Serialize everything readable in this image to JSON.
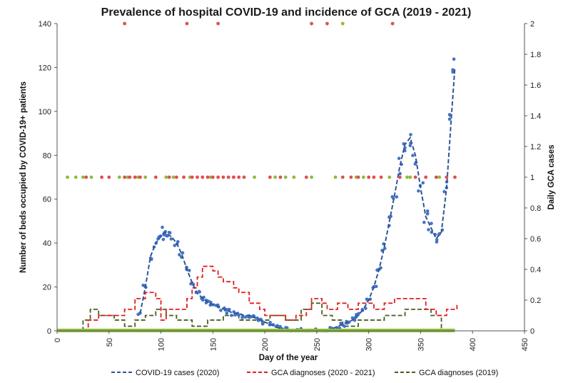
{
  "chart_data": {
    "type": "scatter",
    "title": "Prevalence of hospital COVID-19 and incidence of GCA (2019 - 2021)",
    "xlabel": "Day of the year",
    "ylabel": "Number of beds occupied by COVID-19+ patients",
    "y2label": "Daily GCA cases",
    "xlim": [
      0,
      450
    ],
    "ylim": [
      0,
      140
    ],
    "y2lim": [
      0,
      2
    ],
    "x_ticks": [
      "0",
      "50",
      "100",
      "150",
      "200",
      "250",
      "300",
      "350",
      "400",
      "450"
    ],
    "y_ticks": [
      "0",
      "20",
      "40",
      "60",
      "80",
      "100",
      "120",
      "140"
    ],
    "y2_ticks": [
      "0",
      "0.2",
      "0.4",
      "0.6",
      "0.8",
      "1",
      "1.2",
      "1.4",
      "1.6",
      "1.8",
      "2"
    ],
    "grid": false,
    "legend_position": "bottom",
    "colors": {
      "covid": "#4472c4",
      "covid_trend": "#2f5597",
      "gca_2020": "#e05050",
      "gca_2020_trend": "#e02020",
      "gca_2019": "#8fbc3c",
      "gca_2019_trend": "#4a5e20"
    },
    "series": [
      {
        "name": "COVID-19 cases (2020)",
        "axis": "left",
        "style": "dashed-trend",
        "x": [
          80,
          85,
          90,
          95,
          100,
          103,
          106,
          110,
          115,
          120,
          125,
          130,
          135,
          140,
          145,
          150,
          155,
          160,
          165,
          170,
          175,
          180,
          185,
          190,
          195,
          200,
          205,
          210,
          215,
          220,
          225,
          230,
          235,
          240,
          245,
          250,
          255,
          260,
          265,
          270,
          275,
          280,
          285,
          290,
          295,
          300,
          305,
          310,
          315,
          320,
          325,
          330,
          335,
          340,
          345,
          350,
          355,
          360,
          365,
          370,
          375,
          380,
          383
        ],
        "y": [
          8,
          20,
          34,
          40,
          43,
          45,
          44,
          43,
          40,
          35,
          28,
          22,
          17,
          15,
          13,
          12,
          11,
          10,
          9,
          8,
          8,
          7,
          7,
          6,
          5,
          4,
          3,
          2,
          1,
          0.5,
          0,
          0,
          0,
          0,
          0,
          0,
          0,
          0,
          1,
          2,
          3,
          4,
          5,
          7,
          10,
          14,
          20,
          28,
          38,
          50,
          62,
          75,
          85,
          88,
          80,
          65,
          52,
          47,
          42,
          45,
          65,
          100,
          120
        ]
      },
      {
        "name": "GCA diagnoses (2020 - 2021)",
        "axis": "right",
        "style": "dashed-step",
        "x": [
          27,
          30,
          40,
          55,
          65,
          75,
          85,
          95,
          100,
          105,
          115,
          125,
          130,
          135,
          140,
          145,
          150,
          155,
          160,
          165,
          170,
          175,
          180,
          185,
          190,
          195,
          200,
          210,
          220,
          230,
          240,
          245,
          250,
          255,
          260,
          270,
          280,
          290,
          300,
          305,
          315,
          325,
          335,
          345,
          355,
          365,
          375,
          385
        ],
        "y": [
          0,
          0.07,
          0.1,
          0.1,
          0.14,
          0.21,
          0.25,
          0.21,
          0.07,
          0.14,
          0.14,
          0.21,
          0.28,
          0.35,
          0.42,
          0.42,
          0.39,
          0.35,
          0.32,
          0.32,
          0.28,
          0.25,
          0.25,
          0.18,
          0.18,
          0.14,
          0.1,
          0.1,
          0.07,
          0.1,
          0.14,
          0.21,
          0.21,
          0.18,
          0.14,
          0.18,
          0.14,
          0.18,
          0.18,
          0.14,
          0.18,
          0.21,
          0.21,
          0.21,
          0.14,
          0.1,
          0.14,
          0.18
        ]
      },
      {
        "name": "GCA diagnoses (2019)",
        "axis": "right",
        "style": "dashed-step",
        "x": [
          0,
          25,
          32,
          40,
          55,
          65,
          75,
          85,
          95,
          105,
          115,
          130,
          145,
          160,
          175,
          190,
          205,
          220,
          235,
          245,
          255,
          265,
          275,
          290,
          305,
          315,
          325,
          335,
          350,
          360,
          370,
          383
        ],
        "y": [
          0,
          0.07,
          0.14,
          0.1,
          0.07,
          0.03,
          0.07,
          0.1,
          0.14,
          0.1,
          0.07,
          0.03,
          0.07,
          0.1,
          0.07,
          0.07,
          0.1,
          0.07,
          0.14,
          0.18,
          0.1,
          0.07,
          0.03,
          0.07,
          0.07,
          0.1,
          0.1,
          0.14,
          0.14,
          0.1,
          0,
          0
        ]
      }
    ],
    "gca_points_2020": {
      "x": [
        28,
        43,
        50,
        65,
        70,
        75,
        80,
        95,
        108,
        115,
        122,
        130,
        135,
        140,
        145,
        150,
        155,
        160,
        165,
        170,
        175,
        180,
        205,
        215,
        240,
        275,
        283,
        290,
        300,
        305,
        312,
        330,
        345,
        355,
        365,
        375,
        383,
        65,
        125,
        155,
        245,
        260,
        323
      ],
      "y": [
        1,
        1,
        1,
        1,
        1,
        1,
        1,
        1,
        1,
        1,
        1,
        1,
        1,
        1,
        1,
        1,
        1,
        1,
        1,
        1,
        1,
        1,
        1,
        1,
        1,
        1,
        1,
        1,
        1,
        1,
        1,
        1,
        1,
        1,
        1,
        1,
        1,
        2,
        2,
        2,
        2,
        2,
        2
      ]
    },
    "gca_points_2019": {
      "x": [
        10,
        18,
        25,
        33,
        60,
        68,
        78,
        85,
        105,
        112,
        128,
        148,
        170,
        190,
        210,
        220,
        228,
        245,
        268,
        288,
        295,
        320,
        330,
        337,
        340,
        368,
        275
      ],
      "y": [
        1,
        1,
        1,
        1,
        1,
        1,
        1,
        1,
        1,
        1,
        1,
        1,
        1,
        1,
        1,
        1,
        1,
        1,
        1,
        1,
        1,
        1,
        1,
        1,
        1,
        1,
        2
      ]
    }
  }
}
